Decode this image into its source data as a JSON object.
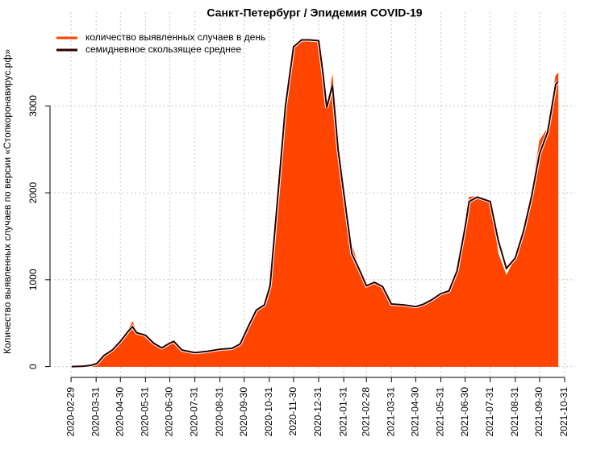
{
  "chart_data": {
    "type": "area-line",
    "title": "Санкт-Петербург / Эпидемия COVID-19",
    "y_label": "Количество выявленных случаев по версии «Стопкоронавирус.рф»",
    "x": [
      "2020-03-01",
      "2020-03-15",
      "2020-03-25",
      "2020-04-01",
      "2020-04-10",
      "2020-04-20",
      "2020-04-30",
      "2020-05-10",
      "2020-05-15",
      "2020-05-20",
      "2020-05-31",
      "2020-06-10",
      "2020-06-20",
      "2020-06-30",
      "2020-07-05",
      "2020-07-15",
      "2020-07-31",
      "2020-08-15",
      "2020-08-31",
      "2020-09-15",
      "2020-09-25",
      "2020-10-05",
      "2020-10-15",
      "2020-10-25",
      "2020-11-01",
      "2020-11-10",
      "2020-11-20",
      "2020-11-30",
      "2020-12-10",
      "2020-12-20",
      "2020-12-31",
      "2021-01-05",
      "2021-01-10",
      "2021-01-17",
      "2021-01-24",
      "2021-01-31",
      "2021-02-10",
      "2021-02-20",
      "2021-02-28",
      "2021-03-10",
      "2021-03-20",
      "2021-03-31",
      "2021-04-15",
      "2021-04-30",
      "2021-05-10",
      "2021-05-20",
      "2021-05-31",
      "2021-06-10",
      "2021-06-20",
      "2021-06-30",
      "2021-07-05",
      "2021-07-15",
      "2021-07-31",
      "2021-08-10",
      "2021-08-20",
      "2021-08-31",
      "2021-09-10",
      "2021-09-20",
      "2021-09-30",
      "2021-10-10",
      "2021-10-20",
      "2021-10-23"
    ],
    "series": [
      {
        "name": "количество выявленных случаев в день",
        "color": "#ff4500",
        "kind": "area",
        "values": [
          0,
          5,
          20,
          40,
          150,
          180,
          300,
          430,
          520,
          390,
          360,
          260,
          210,
          270,
          290,
          180,
          160,
          175,
          200,
          210,
          270,
          480,
          650,
          720,
          950,
          1900,
          3000,
          3700,
          3770,
          3760,
          3760,
          3500,
          2950,
          3350,
          2500,
          2050,
          1400,
          1100,
          920,
          980,
          940,
          720,
          700,
          690,
          720,
          780,
          840,
          860,
          1100,
          1600,
          1950,
          1960,
          1900,
          1300,
          1050,
          1250,
          1600,
          2000,
          2600,
          2750,
          3350,
          3380
        ]
      },
      {
        "name": "семидневное скользящее среднее",
        "color": "#2b0000",
        "kind": "line",
        "values": [
          0,
          5,
          15,
          35,
          130,
          190,
          290,
          410,
          460,
          390,
          360,
          270,
          215,
          270,
          290,
          190,
          160,
          175,
          200,
          210,
          260,
          460,
          650,
          710,
          930,
          1900,
          3000,
          3680,
          3760,
          3760,
          3750,
          3400,
          2980,
          3240,
          2500,
          2000,
          1300,
          1100,
          930,
          970,
          920,
          720,
          710,
          690,
          720,
          770,
          840,
          870,
          1100,
          1600,
          1900,
          1950,
          1900,
          1450,
          1130,
          1250,
          1550,
          1950,
          2450,
          2700,
          3250,
          3280
        ]
      }
    ],
    "xlim": [
      "2020-02-03",
      "2021-11-13"
    ],
    "xticks": [
      "2020-02-29",
      "2020-03-31",
      "2020-04-30",
      "2020-05-31",
      "2020-06-30",
      "2020-07-31",
      "2020-08-31",
      "2020-09-30",
      "2020-10-31",
      "2020-11-30",
      "2020-12-31",
      "2021-01-31",
      "2021-02-28",
      "2021-03-31",
      "2021-04-30",
      "2021-05-31",
      "2021-06-30",
      "2021-07-31",
      "2021-08-31",
      "2021-09-30",
      "2021-10-31"
    ],
    "ylim": [
      -50,
      4080
    ],
    "yticks": [
      0,
      1000,
      2000,
      3000
    ],
    "grid": true,
    "legend": "topleft"
  }
}
